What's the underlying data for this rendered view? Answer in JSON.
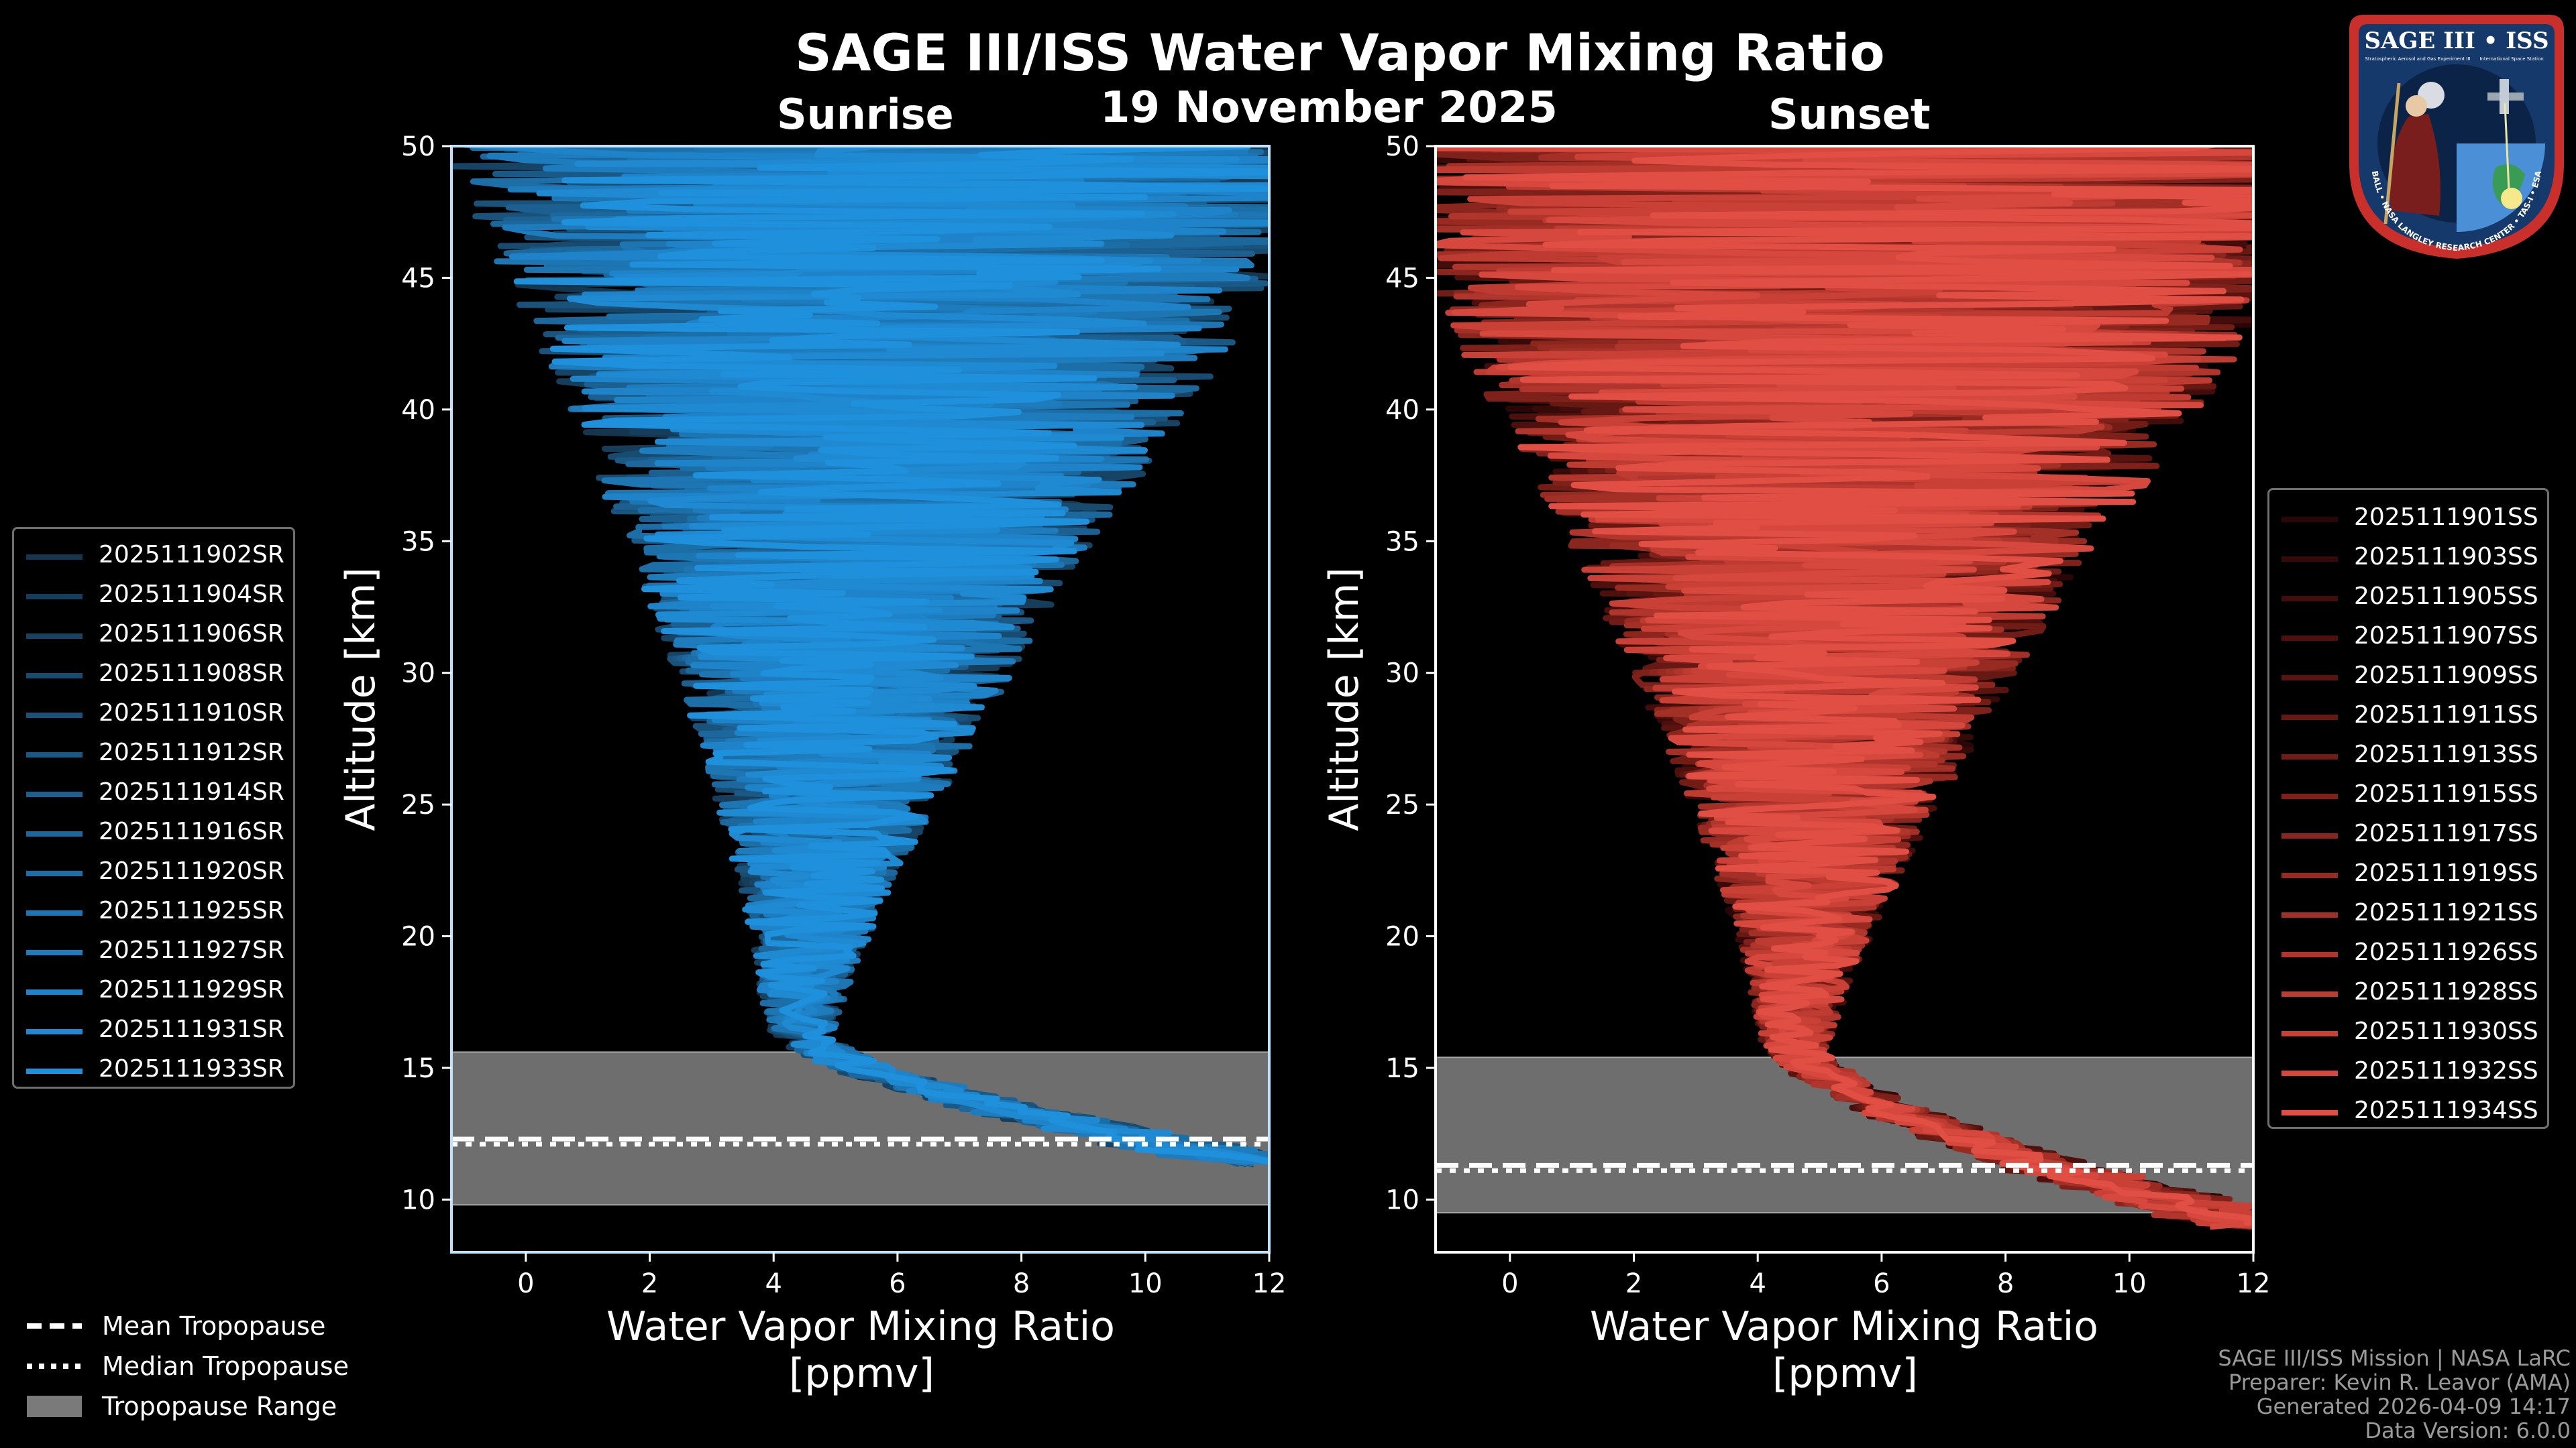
{
  "title": "SAGE III/ISS Water Vapor Mixing Ratio",
  "date": "19 November 2025",
  "credits": [
    "SAGE III/ISS Mission | NASA LaRC",
    "Preparer: Kevin R. Leavor (AMA)",
    "Generated 2026-04-09 14:17",
    "Data Version: 6.0.0"
  ],
  "badge": {
    "title": "SAGE III • ISS",
    "subtitle_left": "Stratospheric Aerosol and Gas Experiment III",
    "subtitle_right": "International Space Station",
    "ring_text": "BALL • NASA LANGLEY RESEARCH CENTER • TAS-I • ESA"
  },
  "bottom_legend": {
    "mean": "Mean Tropopause",
    "median": "Median Tropopause",
    "range": "Tropopause Range"
  },
  "colors": {
    "sunrise_base": "#1f8fd6",
    "sunset_base": "#e8564a",
    "trop_band": "#6e6e6e"
  },
  "chart_data": [
    {
      "type": "line",
      "panel": "sunrise",
      "subtitle": "Sunrise",
      "xlabel": "Water Vapor Mixing Ratio\n[ppmv]",
      "xlabel_lines": [
        "Water Vapor Mixing Ratio",
        "[ppmv]"
      ],
      "ylabel": "Altitude [km]",
      "xlim": [
        -1.2,
        12
      ],
      "ylim": [
        8,
        50
      ],
      "xticks": [
        0,
        2,
        4,
        6,
        8,
        10,
        12
      ],
      "yticks": [
        10,
        15,
        20,
        25,
        30,
        35,
        40,
        45,
        50
      ],
      "tropopause_range": [
        9.8,
        15.6
      ],
      "mean_tropopause": 12.3,
      "median_tropopause": 12.1,
      "profile_shape": {
        "start_alt": 10.8,
        "min_center": 4.4,
        "min_alt": 16.5,
        "top_center": 6.2,
        "top_spread": 7
      },
      "legend": [
        "2025111902SR",
        "2025111904SR",
        "2025111906SR",
        "2025111908SR",
        "2025111910SR",
        "2025111912SR",
        "2025111914SR",
        "2025111916SR",
        "2025111920SR",
        "2025111925SR",
        "2025111927SR",
        "2025111929SR",
        "2025111931SR",
        "2025111933SR"
      ],
      "series_colors": [
        "#15364f",
        "#163d5a",
        "#174465",
        "#184b70",
        "#19527b",
        "#1a5986",
        "#1b6091",
        "#1c679c",
        "#1c6ea7",
        "#1d75b2",
        "#1e7cbd",
        "#1e83c8",
        "#1f8ad2",
        "#1f91dc"
      ]
    },
    {
      "type": "line",
      "panel": "sunset",
      "subtitle": "Sunset",
      "xlabel": "Water Vapor Mixing Ratio\n[ppmv]",
      "xlabel_lines": [
        "Water Vapor Mixing Ratio",
        "[ppmv]"
      ],
      "ylabel": "Altitude [km]",
      "xlim": [
        -1.2,
        12
      ],
      "ylim": [
        8,
        50
      ],
      "xticks": [
        0,
        2,
        4,
        6,
        8,
        10,
        12
      ],
      "yticks": [
        10,
        15,
        20,
        25,
        30,
        35,
        40,
        45,
        50
      ],
      "tropopause_range": [
        9.5,
        15.4
      ],
      "mean_tropopause": 11.3,
      "median_tropopause": 11.1,
      "profile_shape": {
        "start_alt": 8.3,
        "min_center": 4.6,
        "min_alt": 16.0,
        "top_center": 5.8,
        "top_spread": 8
      },
      "legend": [
        "2025111901SS",
        "2025111903SS",
        "2025111905SS",
        "2025111907SS",
        "2025111909SS",
        "2025111911SS",
        "2025111913SS",
        "2025111915SS",
        "2025111917SS",
        "2025111919SS",
        "2025111921SS",
        "2025111926SS",
        "2025111928SS",
        "2025111930SS",
        "2025111932SS",
        "2025111934SS"
      ],
      "series_colors": [
        "#2a0706",
        "#360a08",
        "#420d0a",
        "#4e100c",
        "#5a140f",
        "#661812",
        "#721c16",
        "#7e211a",
        "#8a261e",
        "#972b22",
        "#a33027",
        "#b0352c",
        "#bd3b31",
        "#c94136",
        "#d6483d",
        "#e14f44"
      ]
    }
  ]
}
